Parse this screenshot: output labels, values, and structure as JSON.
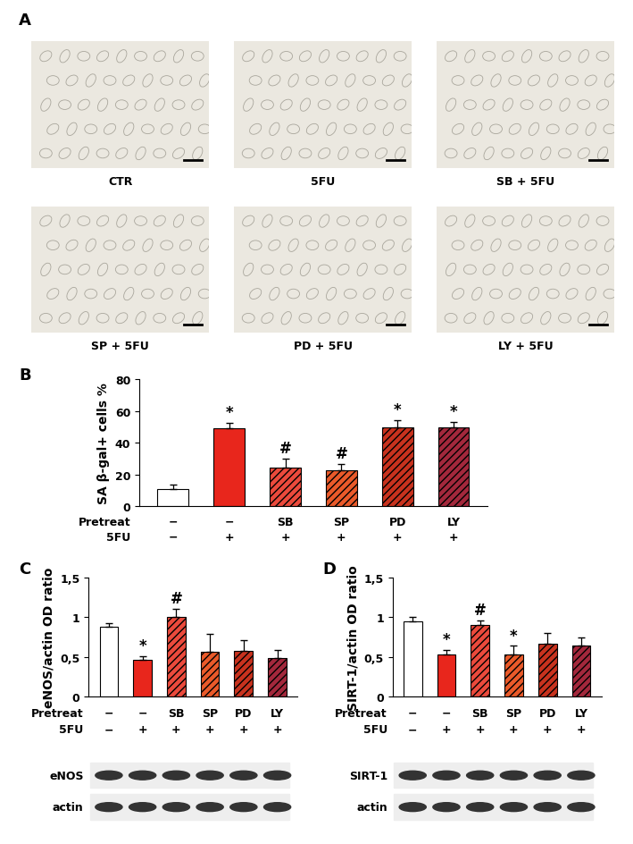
{
  "micrographs": {
    "label": "A",
    "images": [
      "CTR",
      "5FU",
      "SB + 5FU",
      "SP + 5FU",
      "PD + 5FU",
      "LY + 5FU"
    ]
  },
  "chart_data": [
    {
      "type": "bar",
      "title": "B",
      "y_label": "SA β-gal+ cells %",
      "category_label": "Pretreat",
      "categories": [
        "−",
        "−",
        "SB",
        "SP",
        "PD",
        "LY"
      ],
      "treatment": {
        "name": "5FU",
        "labels": [
          "−",
          "+",
          "+",
          "+",
          "+",
          "+"
        ]
      },
      "values": [
        11,
        49,
        24,
        22.5,
        49.5,
        49.5
      ],
      "errors": [
        2.5,
        3.5,
        6,
        4,
        4.5,
        3.5
      ],
      "marks": [
        null,
        "*",
        "#",
        "#",
        "*",
        "*"
      ],
      "colors": [
        "#ffffff",
        "#e8261c",
        "#eb4a3c",
        "#ea5a2a",
        "#c8321e",
        "#a3283c"
      ],
      "ylim": [
        0,
        80
      ],
      "yticks": [
        0,
        20,
        40,
        60,
        80
      ]
    },
    {
      "type": "bar",
      "title": "C",
      "y_label": "eNOS/actin OD ratio",
      "category_label": "Pretreat",
      "categories": [
        "−",
        "−",
        "SB",
        "SP",
        "PD",
        "LY"
      ],
      "treatment": {
        "name": "5FU",
        "labels": [
          "−",
          "+",
          "+",
          "+",
          "+",
          "+"
        ]
      },
      "values": [
        0.88,
        0.46,
        1.01,
        0.56,
        0.57,
        0.48
      ],
      "errors": [
        0.05,
        0.05,
        0.1,
        0.23,
        0.14,
        0.11
      ],
      "marks": [
        null,
        "*",
        "#",
        null,
        null,
        null
      ],
      "colors": [
        "#ffffff",
        "#e8261c",
        "#eb4a3c",
        "#ea5a2a",
        "#c8321e",
        "#a3283c"
      ],
      "ylim": [
        0,
        1.5
      ],
      "yticks": [
        0,
        {
          "value": 0.5,
          "label": "0,5"
        },
        1,
        {
          "value": 1.5,
          "label": "1,5"
        }
      ],
      "blot_labels": [
        "eNOS",
        "actin"
      ]
    },
    {
      "type": "bar",
      "title": "D",
      "y_label": "SIRT-1/actin OD ratio",
      "category_label": "Pretreat",
      "categories": [
        "−",
        "−",
        "SB",
        "SP",
        "PD",
        "LY"
      ],
      "treatment": {
        "name": "5FU",
        "labels": [
          "−",
          "+",
          "+",
          "+",
          "+",
          "+"
        ]
      },
      "values": [
        0.95,
        0.53,
        0.9,
        0.53,
        0.67,
        0.64
      ],
      "errors": [
        0.05,
        0.06,
        0.06,
        0.11,
        0.13,
        0.1
      ],
      "marks": [
        null,
        "*",
        "#",
        "*",
        null,
        null
      ],
      "colors": [
        "#ffffff",
        "#e8261c",
        "#eb4a3c",
        "#ea5a2a",
        "#c8321e",
        "#a3283c"
      ],
      "ylim": [
        0,
        1.5
      ],
      "yticks": [
        0,
        {
          "value": 0.5,
          "label": "0,5"
        },
        1,
        {
          "value": 1.5,
          "label": "1,5"
        }
      ],
      "blot_labels": [
        "SIRT-1",
        "actin"
      ]
    }
  ]
}
